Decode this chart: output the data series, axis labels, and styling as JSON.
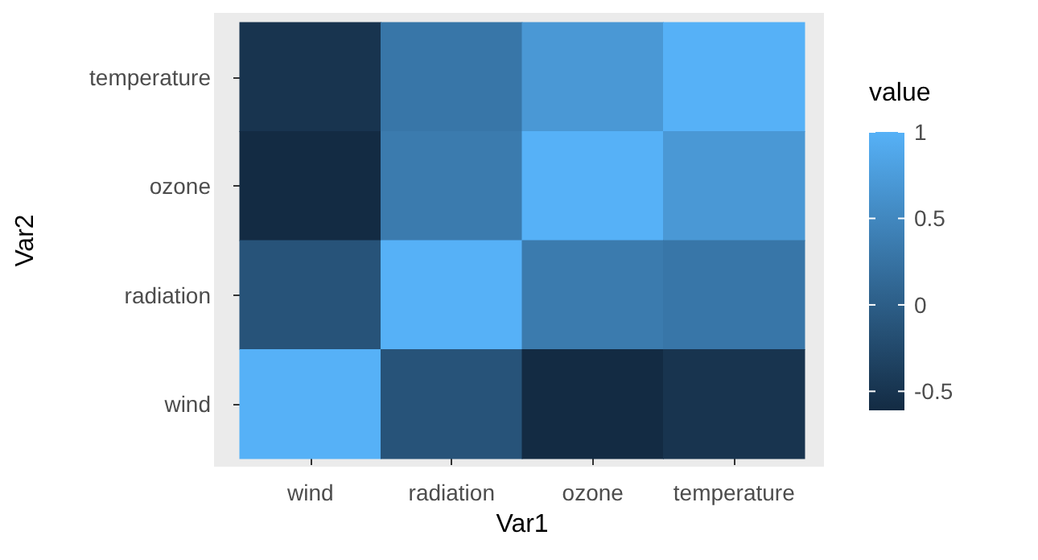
{
  "chart_data": {
    "type": "heatmap",
    "xlabel": "Var1",
    "ylabel": "Var2",
    "legend_title": "value",
    "categories": [
      "wind",
      "radiation",
      "ozone",
      "temperature"
    ],
    "y_categories": [
      "temperature",
      "ozone",
      "radiation",
      "wind"
    ],
    "cells": [
      [
        -0.5,
        0.29,
        0.7,
        1
      ],
      [
        -0.61,
        0.35,
        1,
        0.7
      ],
      [
        -0.13,
        1,
        0.35,
        0.29
      ],
      [
        1,
        -0.13,
        -0.61,
        -0.5
      ]
    ],
    "colors": [
      "#132b43",
      "#56b1f7"
    ],
    "clim": [
      -0.61,
      1
    ],
    "cticks": [
      -0.5,
      0,
      0.5,
      1
    ]
  }
}
